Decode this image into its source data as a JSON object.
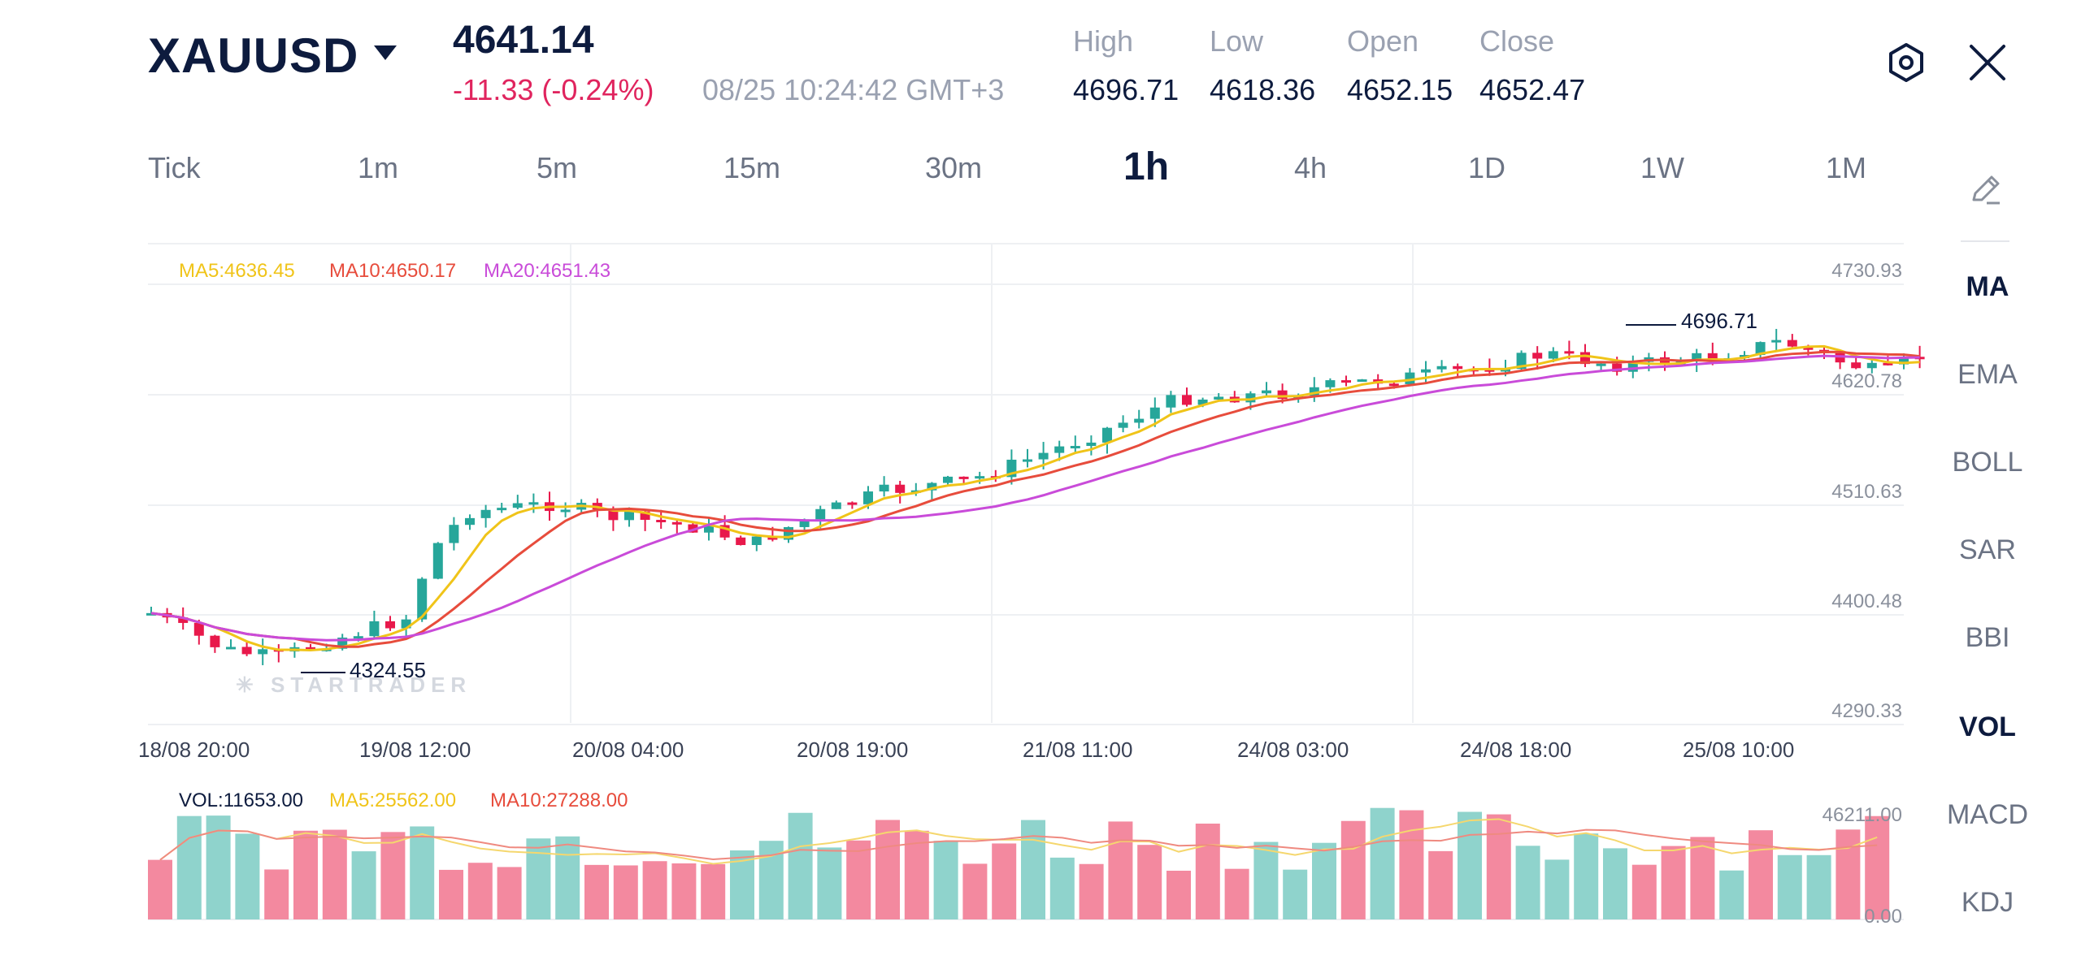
{
  "header": {
    "symbol": "XAUUSD",
    "price": "4641.14",
    "change": "-11.33 (-0.24%)",
    "time": "08/25 10:24:42 GMT+3",
    "stats": [
      {
        "label": "High",
        "value": "4696.71"
      },
      {
        "label": "Low",
        "value": "4618.36"
      },
      {
        "label": "Open",
        "value": "4652.15"
      },
      {
        "label": "Close",
        "value": "4652.47"
      }
    ]
  },
  "timeframes": [
    "Tick",
    "1m",
    "5m",
    "15m",
    "30m",
    "1h",
    "4h",
    "1D",
    "1W",
    "1M"
  ],
  "active_timeframe": "1h",
  "indicators": [
    "MA",
    "EMA",
    "BOLL",
    "SAR",
    "BBI",
    "VOL",
    "MACD",
    "KDJ"
  ],
  "active_indicators": [
    "MA",
    "VOL"
  ],
  "main_chart": {
    "ma_legend": [
      {
        "label": "MA5:4636.45",
        "color": "#f0c419"
      },
      {
        "label": "MA10:4650.17",
        "color": "#e74c3c"
      },
      {
        "label": "MA20:4651.43",
        "color": "#c94bd9"
      }
    ],
    "y_ticks": [
      "4730.93",
      "4620.78",
      "4510.63",
      "4400.48",
      "4290.33"
    ],
    "x_ticks": [
      "18/08 20:00",
      "19/08 12:00",
      "20/08 04:00",
      "20/08 19:00",
      "21/08 11:00",
      "24/08 03:00",
      "24/08 18:00",
      "25/08 10:00"
    ],
    "high_label": "4696.71",
    "low_label": "4324.55",
    "watermark": "STARTRADER"
  },
  "volume_chart": {
    "legend": [
      {
        "label": "VOL:11653.00",
        "color": "#0d1b3e"
      },
      {
        "label": "MA5:25562.00",
        "color": "#f0c419"
      },
      {
        "label": "MA10:27288.00",
        "color": "#e74c3c"
      }
    ],
    "y_ticks": [
      "46211.00",
      "0.00"
    ]
  },
  "colors": {
    "up": "#26a69a",
    "down": "#e8194b",
    "up_vol": "#8fd3cc",
    "down_vol": "#f3899f"
  }
}
